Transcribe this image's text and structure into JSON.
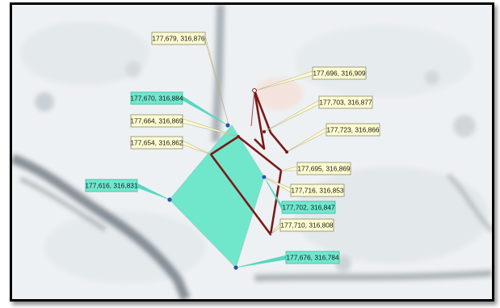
{
  "map": {
    "colors": {
      "background": "#f2f4f5",
      "parcel_fill": "#66e6c8",
      "parcel_stroke": "#7fd8c8",
      "route_stroke": "#7a1a1a",
      "vertex_blue": "#2f4fa8",
      "label_yellow": "#fdfbd0",
      "label_cyan": "#6fe8cf",
      "leader_yellow": "#e8e29a",
      "leader_cyan": "#55d8c0"
    },
    "labels": [
      {
        "id": "p1",
        "text": "177,679, 316,876",
        "style": "yellow"
      },
      {
        "id": "p2",
        "text": "177,696, 316,909",
        "style": "yellow"
      },
      {
        "id": "p3",
        "text": "177,670, 316,884",
        "style": "cyan"
      },
      {
        "id": "p4",
        "text": "177,703, 316,877",
        "style": "yellow"
      },
      {
        "id": "p5",
        "text": "177,664, 316,869",
        "style": "yellow"
      },
      {
        "id": "p6",
        "text": "177,723, 316,866",
        "style": "yellow"
      },
      {
        "id": "p7",
        "text": "177,654, 316,862",
        "style": "yellow"
      },
      {
        "id": "p8",
        "text": "177,695, 316,869",
        "style": "yellow"
      },
      {
        "id": "p9",
        "text": "177,616, 316,831",
        "style": "cyan"
      },
      {
        "id": "p10",
        "text": "177,716, 316,853",
        "style": "yellow"
      },
      {
        "id": "p11",
        "text": "177,702, 316,847",
        "style": "cyan"
      },
      {
        "id": "p12",
        "text": "177,710, 316,808",
        "style": "yellow"
      },
      {
        "id": "p13",
        "text": "177,676, 316,784",
        "style": "cyan"
      }
    ]
  }
}
